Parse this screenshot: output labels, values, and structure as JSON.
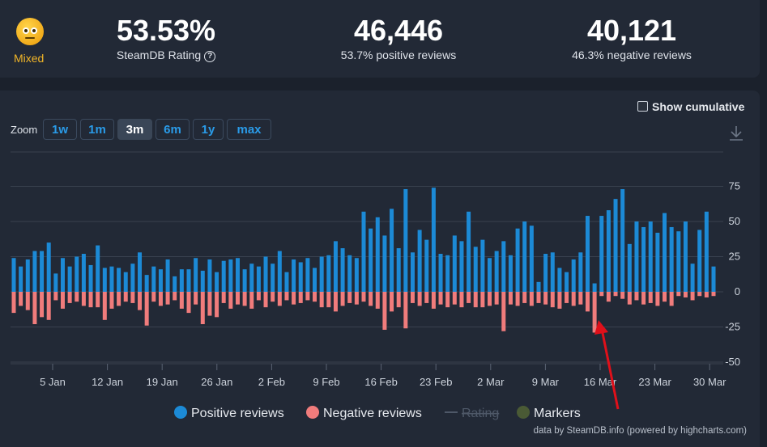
{
  "header": {
    "rating_label": "Mixed",
    "rating_value": "53.53%",
    "rating_caption": "SteamDB Rating",
    "help_glyph": "?",
    "positive_count": "46,446",
    "positive_caption": "53.7% positive reviews",
    "negative_count": "40,121",
    "negative_caption": "46.3% negative reviews"
  },
  "controls": {
    "zoom_label": "Zoom",
    "zoom_buttons": [
      "1w",
      "1m",
      "3m",
      "6m",
      "1y",
      "max"
    ],
    "active_zoom": "3m",
    "show_cumulative": "Show cumulative",
    "download_icon": "download-icon"
  },
  "chart_data": {
    "type": "bar",
    "x_tick_labels": [
      "5 Jan",
      "12 Jan",
      "19 Jan",
      "26 Jan",
      "2 Feb",
      "9 Feb",
      "16 Feb",
      "23 Feb",
      "2 Mar",
      "9 Mar",
      "16 Mar",
      "23 Mar",
      "30 Mar"
    ],
    "y_tick_labels": [
      "75",
      "50",
      "25",
      "0",
      "-25",
      "-50"
    ],
    "ylim": [
      -50,
      75
    ],
    "grid": true,
    "legend_position": "bottom",
    "series": [
      {
        "name": "Positive reviews",
        "color": "#1c8ad6",
        "values": [
          24,
          18,
          23,
          29,
          29,
          35,
          13,
          24,
          18,
          25,
          27,
          19,
          33,
          17,
          18,
          17,
          14,
          20,
          28,
          12,
          18,
          16,
          23,
          11,
          16,
          16,
          24,
          15,
          23,
          14,
          22,
          23,
          24,
          16,
          20,
          18,
          25,
          20,
          29,
          14,
          23,
          21,
          24,
          17,
          25,
          26,
          36,
          31,
          26,
          24,
          57,
          45,
          53,
          40,
          59,
          31,
          73,
          28,
          44,
          37,
          74,
          27,
          26,
          40,
          36,
          57,
          32,
          37,
          24,
          29,
          36,
          26,
          45,
          50,
          47,
          7,
          27,
          28,
          17,
          14,
          23,
          28,
          54,
          6,
          54,
          58,
          66,
          73,
          34,
          50,
          46,
          50,
          42,
          56,
          46,
          43,
          50,
          20,
          44,
          57,
          18
        ],
        "note": "one bar per day, Dec 30 to Mar 31"
      },
      {
        "name": "Negative reviews",
        "color": "#f07c7c",
        "values": [
          -15,
          -10,
          -13,
          -23,
          -18,
          -20,
          -6,
          -12,
          -8,
          -7,
          -10,
          -11,
          -11,
          -20,
          -12,
          -10,
          -7,
          -8,
          -13,
          -24,
          -7,
          -10,
          -9,
          -6,
          -12,
          -15,
          -9,
          -23,
          -17,
          -18,
          -8,
          -12,
          -9,
          -10,
          -12,
          -6,
          -11,
          -7,
          -10,
          -6,
          -9,
          -8,
          -6,
          -7,
          -11,
          -11,
          -14,
          -10,
          -8,
          -9,
          -7,
          -10,
          -12,
          -27,
          -14,
          -11,
          -26,
          -8,
          -10,
          -8,
          -12,
          -9,
          -11,
          -9,
          -11,
          -8,
          -11,
          -11,
          -10,
          -9,
          -28,
          -9,
          -10,
          -8,
          -10,
          -8,
          -9,
          -11,
          -12,
          -8,
          -10,
          -9,
          -14,
          -29,
          -3,
          -7,
          -3,
          -5,
          -9,
          -6,
          -9,
          -8,
          -10,
          -7,
          -10,
          -3,
          -4,
          -6,
          -3,
          -4,
          -3
        ]
      },
      {
        "name": "Rating",
        "hidden": true
      },
      {
        "name": "Markers",
        "color": "#4a5a35"
      }
    ]
  },
  "annotation": {
    "arrow_color": "#e0101a"
  },
  "credit": "data by SteamDB.info (powered by highcharts.com)"
}
